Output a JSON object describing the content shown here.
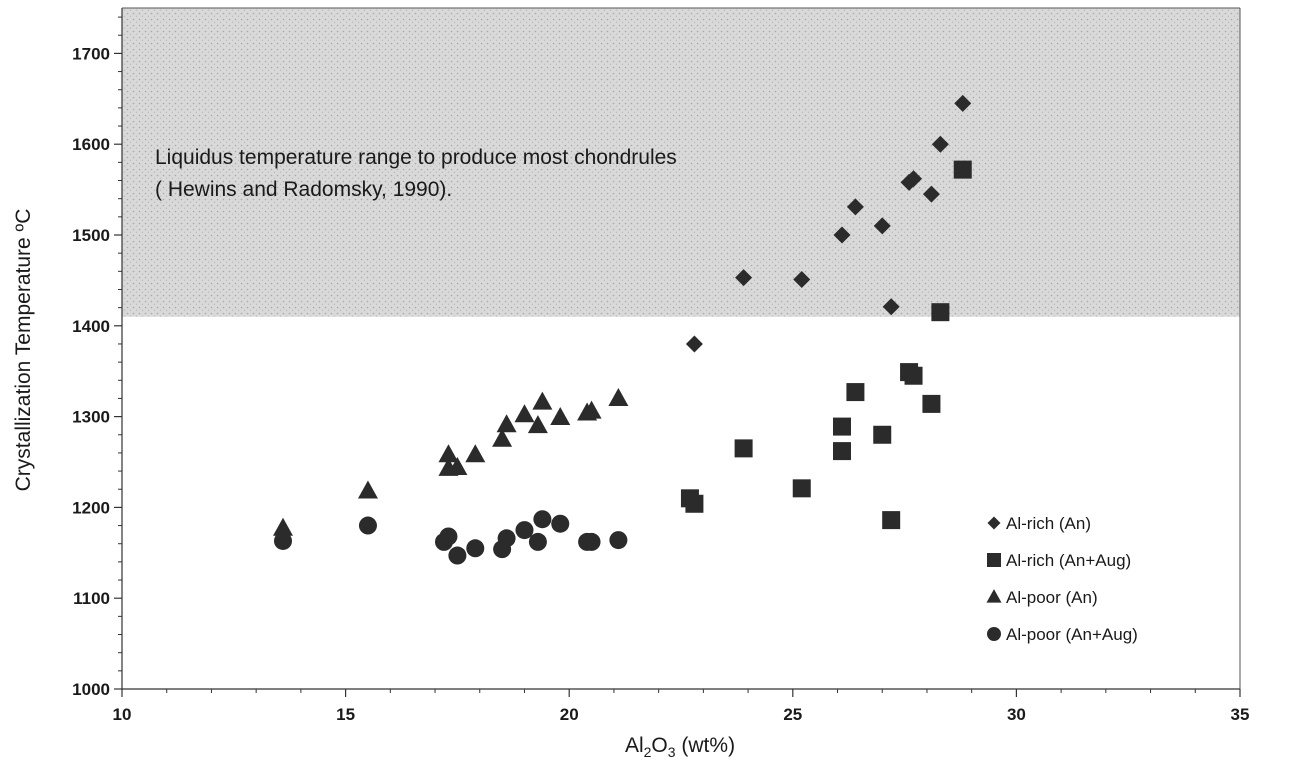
{
  "chart_data": {
    "type": "scatter",
    "title": "",
    "xlabel_parts": {
      "prefix": "Al",
      "sub": "2",
      "mid": "O",
      "sub2": "3",
      "suffix": " (wt%)"
    },
    "ylabel": "Crystallization Temperature ºC",
    "xlim": [
      10,
      35
    ],
    "ylim": [
      1000,
      1750
    ],
    "x_ticks": [
      10,
      15,
      20,
      25,
      30,
      35
    ],
    "y_ticks": [
      1000,
      1100,
      1200,
      1300,
      1400,
      1500,
      1600,
      1700
    ],
    "grid": false,
    "legend_position": "bottom-right",
    "shaded_region": {
      "y_min": 1410,
      "y_max": 1750,
      "color": "#d6d6d6"
    },
    "annotation": {
      "line1": "Liquidus temperature range to produce most chondrules",
      "line2": "( Hewins and Radomsky, 1990)."
    },
    "series": [
      {
        "name": "Al-rich (An)",
        "marker": "diamond",
        "points": [
          [
            22.8,
            1380
          ],
          [
            23.9,
            1453
          ],
          [
            25.2,
            1451
          ],
          [
            26.1,
            1500
          ],
          [
            26.4,
            1531
          ],
          [
            27.0,
            1510
          ],
          [
            27.2,
            1421
          ],
          [
            27.6,
            1558
          ],
          [
            27.7,
            1562
          ],
          [
            28.1,
            1545
          ],
          [
            28.3,
            1600
          ],
          [
            28.8,
            1645
          ]
        ]
      },
      {
        "name": "Al-rich (An+Aug)",
        "marker": "square",
        "points": [
          [
            22.7,
            1210
          ],
          [
            22.8,
            1204
          ],
          [
            23.9,
            1265
          ],
          [
            25.2,
            1221
          ],
          [
            26.1,
            1289
          ],
          [
            26.1,
            1262
          ],
          [
            26.4,
            1327
          ],
          [
            27.0,
            1280
          ],
          [
            27.2,
            1186
          ],
          [
            27.6,
            1349
          ],
          [
            27.7,
            1345
          ],
          [
            28.1,
            1314
          ],
          [
            28.3,
            1415
          ],
          [
            28.8,
            1572
          ]
        ]
      },
      {
        "name": "Al-poor (An)",
        "marker": "triangle",
        "points": [
          [
            13.6,
            1177
          ],
          [
            15.5,
            1218
          ],
          [
            17.3,
            1243
          ],
          [
            17.3,
            1258
          ],
          [
            17.5,
            1244
          ],
          [
            17.9,
            1258
          ],
          [
            18.5,
            1275
          ],
          [
            18.6,
            1291
          ],
          [
            19.0,
            1302
          ],
          [
            19.3,
            1290
          ],
          [
            19.4,
            1316
          ],
          [
            19.8,
            1299
          ],
          [
            20.4,
            1304
          ],
          [
            20.5,
            1306
          ],
          [
            21.1,
            1320
          ]
        ]
      },
      {
        "name": "Al-poor (An+Aug)",
        "marker": "circle",
        "points": [
          [
            13.6,
            1163
          ],
          [
            15.5,
            1180
          ],
          [
            17.2,
            1162
          ],
          [
            17.3,
            1168
          ],
          [
            17.5,
            1147
          ],
          [
            17.9,
            1155
          ],
          [
            18.5,
            1154
          ],
          [
            18.6,
            1166
          ],
          [
            19.0,
            1175
          ],
          [
            19.3,
            1162
          ],
          [
            19.4,
            1187
          ],
          [
            19.8,
            1182
          ],
          [
            20.4,
            1162
          ],
          [
            20.5,
            1162
          ],
          [
            21.1,
            1164
          ]
        ]
      }
    ]
  }
}
